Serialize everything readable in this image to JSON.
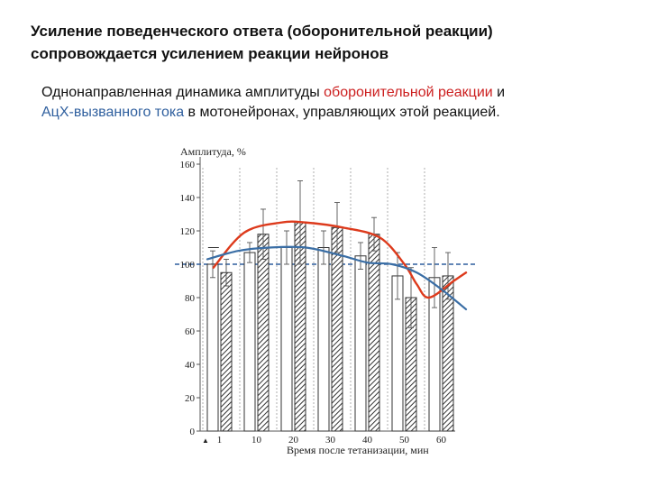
{
  "heading": {
    "line1": "Усиление поведенческого ответа (оборонительной реакции)",
    "line2": "сопровождается  усилением реакции нейронов"
  },
  "description": {
    "part1": "Однонаправленная динамика амплитуды ",
    "red_term": "оборонительной реакции",
    "part2": " и",
    "blue_term": "АцХ-вызванного тока",
    "part3": " в мотонейронах, управляющих этой реакцией."
  },
  "colors": {
    "red_curve": "#dd3a1c",
    "blue_curve": "#3a6ea5",
    "red_text": "#cc1f1f",
    "blue_text": "#2f5f9e",
    "baseline": "#2f5f9e"
  },
  "chart_data": {
    "type": "bar",
    "ylabel": "Амплитуда, %",
    "xlabel": "Время после тетанизации, мин",
    "ylim": [
      0,
      160
    ],
    "yticks": [
      0,
      20,
      40,
      60,
      80,
      100,
      120,
      140,
      160
    ],
    "categories": [
      "1",
      "10",
      "20",
      "30",
      "40",
      "50",
      "60"
    ],
    "x_marker": "▲",
    "baseline": 100,
    "series": [
      {
        "values": [
          100,
          107,
          110,
          110,
          105,
          93,
          92
        ],
        "errors": [
          8,
          6,
          10,
          10,
          8,
          14,
          18
        ],
        "pattern": "plain"
      },
      {
        "values": [
          95,
          118,
          125,
          122,
          118,
          80,
          93
        ],
        "errors": [
          8,
          15,
          25,
          15,
          10,
          18,
          14
        ],
        "pattern": "hatched"
      }
    ],
    "curves": [
      {
        "color_key": "red_curve",
        "points": [
          [
            0.5,
            98
          ],
          [
            3,
            119
          ],
          [
            6,
            125
          ],
          [
            8,
            125
          ],
          [
            11,
            122
          ],
          [
            14,
            116
          ],
          [
            16,
            100
          ],
          [
            17,
            88
          ],
          [
            18,
            80
          ],
          [
            20,
            90
          ],
          [
            21,
            95
          ]
        ]
      },
      {
        "color_key": "blue_curve",
        "points": [
          [
            0,
            103
          ],
          [
            2.5,
            108
          ],
          [
            5,
            110
          ],
          [
            8,
            110
          ],
          [
            11,
            105
          ],
          [
            13,
            101
          ],
          [
            15,
            100
          ],
          [
            17,
            95
          ],
          [
            19,
            85
          ],
          [
            21,
            73
          ]
        ]
      }
    ],
    "single_markers": [
      {
        "x": 0.5,
        "y": 110
      }
    ]
  }
}
